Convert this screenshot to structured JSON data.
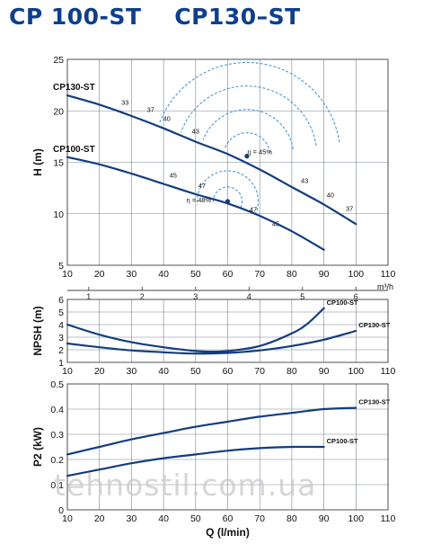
{
  "title": "CP 100-ST    CP130–ST",
  "watermark": "tehnostil.com.ua",
  "chart_data": [
    {
      "type": "line",
      "panel": "head",
      "ylabel": "H (m)",
      "xlim": [
        10,
        110
      ],
      "ylim": [
        5,
        25
      ],
      "x_ticks": [
        10,
        20,
        30,
        40,
        50,
        60,
        70,
        80,
        90,
        100,
        110
      ],
      "y_ticks": [
        5,
        10,
        15,
        20,
        25
      ],
      "secondary_axis": {
        "unit": "m³/h",
        "ticks": [
          "1",
          "2",
          "3",
          "4",
          "5",
          "6"
        ],
        "tick_values": [
          1,
          2,
          3,
          4,
          5,
          6
        ]
      },
      "grid": true,
      "series": [
        {
          "name": "CP130-ST",
          "x": [
            10,
            20,
            30,
            40,
            50,
            60,
            70,
            80,
            90,
            100
          ],
          "y": [
            21.5,
            20.6,
            19.5,
            18.3,
            17.0,
            15.8,
            14.3,
            12.6,
            10.9,
            9.0
          ]
        },
        {
          "name": "CP100-ST",
          "x": [
            10,
            20,
            30,
            40,
            50,
            60,
            70,
            80,
            90
          ],
          "y": [
            15.5,
            14.8,
            13.9,
            12.9,
            11.9,
            11.0,
            9.8,
            8.3,
            6.5
          ]
        }
      ],
      "efficiency_labels": [
        {
          "text": "33",
          "x": 28,
          "y": 20.6
        },
        {
          "text": "37",
          "x": 36,
          "y": 19.9
        },
        {
          "text": "40",
          "x": 41,
          "y": 19.0
        },
        {
          "text": "43",
          "x": 50,
          "y": 17.8
        },
        {
          "text": "η = 45%",
          "x": 70,
          "y": 15.8
        },
        {
          "text": "43",
          "x": 84,
          "y": 13.0
        },
        {
          "text": "40",
          "x": 92,
          "y": 11.6
        },
        {
          "text": "37",
          "x": 98,
          "y": 10.3
        },
        {
          "text": "45",
          "x": 43,
          "y": 13.5
        },
        {
          "text": "47",
          "x": 52,
          "y": 12.5
        },
        {
          "text": "η = 48%",
          "x": 51,
          "y": 11.1
        },
        {
          "text": "47",
          "x": 68,
          "y": 10.2
        },
        {
          "text": "45",
          "x": 75,
          "y": 8.8
        }
      ]
    },
    {
      "type": "line",
      "panel": "npsh",
      "ylabel": "NPSH (m)",
      "xlim": [
        10,
        110
      ],
      "ylim": [
        1,
        6
      ],
      "x_ticks": [
        10,
        20,
        30,
        40,
        50,
        60,
        70,
        80,
        90,
        100,
        110
      ],
      "y_ticks": [
        1,
        2,
        3,
        4,
        5,
        6
      ],
      "grid": true,
      "series": [
        {
          "name": "CP100-ST",
          "x": [
            10,
            20,
            30,
            40,
            50,
            55,
            60,
            70,
            80,
            85,
            90
          ],
          "y": [
            4.0,
            3.2,
            2.6,
            2.2,
            1.9,
            1.85,
            1.9,
            2.3,
            3.3,
            4.1,
            5.3
          ]
        },
        {
          "name": "CP130-ST",
          "x": [
            10,
            20,
            30,
            40,
            50,
            60,
            70,
            80,
            90,
            100
          ],
          "y": [
            2.5,
            2.2,
            1.95,
            1.8,
            1.7,
            1.75,
            1.95,
            2.3,
            2.8,
            3.5
          ]
        }
      ]
    },
    {
      "type": "line",
      "panel": "power",
      "ylabel": "P2 (kW)",
      "xlabel": "Q (l/min)",
      "xlim": [
        10,
        110
      ],
      "ylim": [
        0,
        0.5
      ],
      "x_ticks": [
        10,
        20,
        30,
        40,
        50,
        60,
        70,
        80,
        90,
        100,
        110
      ],
      "y_ticks": [
        0,
        0.1,
        0.2,
        0.3,
        0.4,
        0.5
      ],
      "grid": true,
      "series": [
        {
          "name": "CP130-ST",
          "x": [
            10,
            20,
            30,
            40,
            50,
            60,
            70,
            80,
            90,
            100
          ],
          "y": [
            0.22,
            0.25,
            0.28,
            0.305,
            0.33,
            0.35,
            0.37,
            0.385,
            0.4,
            0.405
          ]
        },
        {
          "name": "CP100-ST",
          "x": [
            10,
            20,
            30,
            40,
            50,
            60,
            70,
            80,
            90
          ],
          "y": [
            0.135,
            0.16,
            0.185,
            0.205,
            0.22,
            0.235,
            0.245,
            0.25,
            0.25
          ]
        }
      ]
    }
  ],
  "colors": {
    "curve": "#123d7e",
    "title": "#0f3f8c",
    "grid": "#7b8694",
    "iso": "#3a8fd0",
    "text": "#111111"
  }
}
